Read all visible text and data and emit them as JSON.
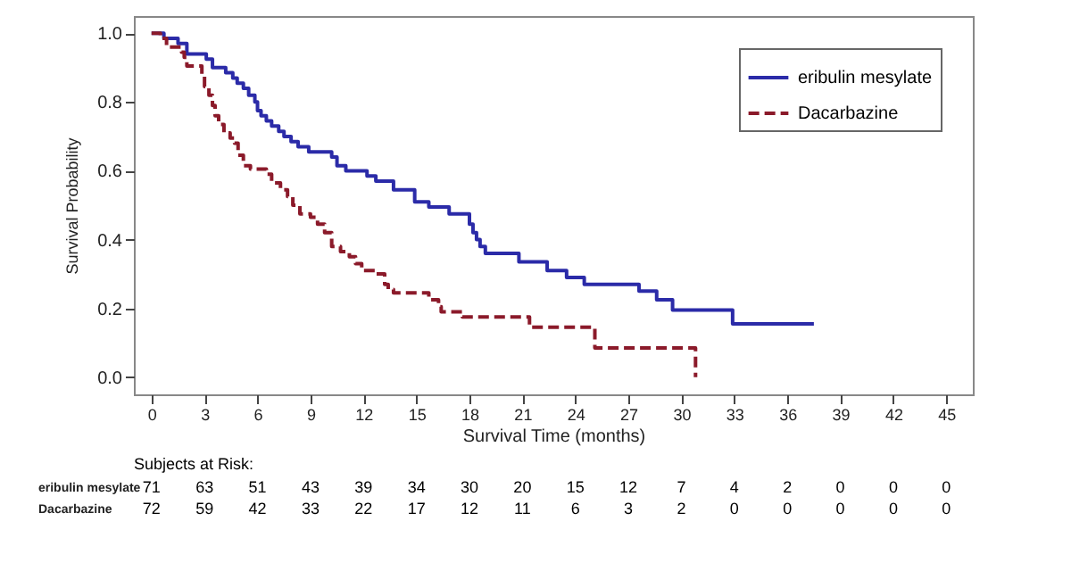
{
  "chart_data": {
    "type": "step",
    "xlabel": "Survival Time (months)",
    "ylabel": "Survival Probability",
    "xlim": [
      -1,
      46.5
    ],
    "ylim": [
      -0.05,
      1.05
    ],
    "xticks": [
      0,
      3,
      6,
      9,
      12,
      15,
      18,
      21,
      24,
      27,
      30,
      33,
      36,
      39,
      42,
      45
    ],
    "yticks": [
      {
        "value": 0,
        "label": "0.0"
      },
      {
        "value": 0.2,
        "label": "0.2"
      },
      {
        "value": 0.4,
        "label": "0.4"
      },
      {
        "value": 0.6,
        "label": "0.6"
      },
      {
        "value": 0.8,
        "label": "0.8"
      },
      {
        "value": 1,
        "label": "1.0"
      }
    ],
    "grid": false,
    "legend": "top right",
    "series": [
      {
        "name": "eribulin mesylate",
        "color": "#2b2ba8",
        "line_style": "solid",
        "x": [
          0,
          0.7,
          1.5,
          2.0,
          3.1,
          3.45,
          4.2,
          4.6,
          4.85,
          5.2,
          5.5,
          5.85,
          6.0,
          6.2,
          6.5,
          6.8,
          7.2,
          7.5,
          7.9,
          8.3,
          8.9,
          10.2,
          10.5,
          11.0,
          12.2,
          12.7,
          13.7,
          14.9,
          15.7,
          16.85,
          18.0,
          18.2,
          18.4,
          18.6,
          18.9,
          20.8,
          22.4,
          23.5,
          24.5,
          27.6,
          28.6,
          29.5,
          32.9,
          37.5
        ],
        "values": [
          1.0,
          0.985,
          0.97,
          0.94,
          0.925,
          0.9,
          0.885,
          0.87,
          0.855,
          0.84,
          0.82,
          0.8,
          0.775,
          0.76,
          0.745,
          0.73,
          0.715,
          0.7,
          0.685,
          0.67,
          0.655,
          0.64,
          0.615,
          0.6,
          0.585,
          0.57,
          0.545,
          0.51,
          0.495,
          0.475,
          0.445,
          0.42,
          0.4,
          0.38,
          0.36,
          0.335,
          0.31,
          0.29,
          0.27,
          0.25,
          0.225,
          0.195,
          0.155,
          0.155
        ]
      },
      {
        "name": "Dacarbazine",
        "color": "#8b1a2a",
        "line_style": "dashed",
        "x": [
          0,
          0.5,
          0.85,
          1.7,
          1.85,
          2.0,
          2.85,
          3.0,
          3.25,
          3.45,
          3.6,
          3.8,
          4.1,
          4.45,
          4.7,
          4.9,
          5.2,
          5.6,
          6.5,
          6.8,
          7.3,
          7.7,
          8.0,
          8.4,
          9.0,
          9.4,
          9.8,
          10.2,
          10.7,
          11.2,
          11.55,
          11.9,
          12.7,
          13.2,
          13.4,
          13.7,
          15.7,
          16.25,
          16.4,
          17.6,
          21.4,
          25.1,
          30.8,
          30.8
        ],
        "values": [
          1.0,
          0.985,
          0.96,
          0.945,
          0.93,
          0.905,
          0.875,
          0.845,
          0.82,
          0.79,
          0.76,
          0.735,
          0.71,
          0.695,
          0.68,
          0.645,
          0.615,
          0.605,
          0.59,
          0.565,
          0.545,
          0.525,
          0.5,
          0.475,
          0.465,
          0.445,
          0.42,
          0.38,
          0.365,
          0.35,
          0.33,
          0.31,
          0.3,
          0.27,
          0.255,
          0.245,
          0.225,
          0.205,
          0.19,
          0.175,
          0.145,
          0.085,
          0.085,
          0
        ]
      }
    ],
    "annotations": [
      "Subjects at Risk:",
      "eribulin mesylate",
      "71",
      "63",
      "51",
      "43",
      "39",
      "34",
      "30",
      "20",
      "15",
      "12",
      "7",
      "4",
      "2",
      "0",
      "0",
      "0",
      "Dacarbazine",
      "72",
      "59",
      "42",
      "33",
      "22",
      "17",
      "12",
      "11",
      "6",
      "3",
      "2",
      "0",
      "0",
      "0",
      "0",
      "0",
      "0"
    ]
  }
}
